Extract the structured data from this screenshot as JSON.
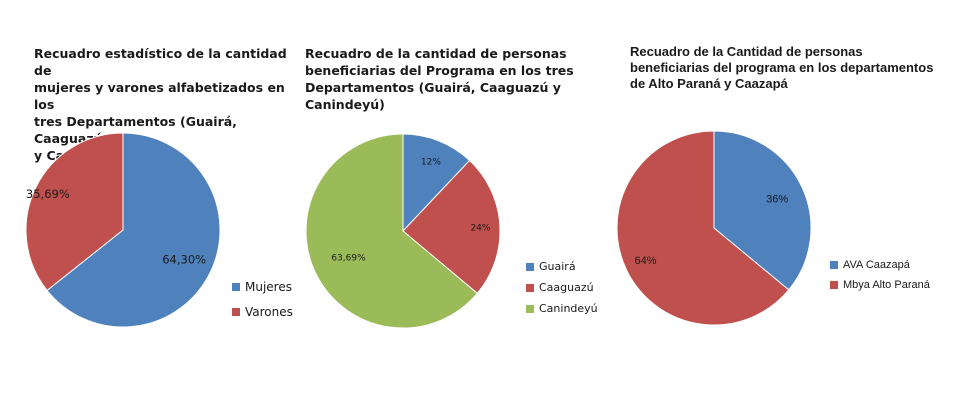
{
  "chart_data": [
    {
      "type": "pie",
      "title": "Recuadro estadístico de la cantidad de\nmujeres y varones alfabetizados en los\ntres Departamentos (Guairá, Caaguazú\ny Canindeyú)",
      "categories": [
        "Mujeres",
        "Varones"
      ],
      "values": [
        64.3,
        35.69
      ],
      "labels": [
        "64,30%",
        "35,69%"
      ],
      "colors": [
        "#4f81bd",
        "#c0504d"
      ],
      "legend_position": "right"
    },
    {
      "type": "pie",
      "title": "Recuadro de la cantidad de personas\nbeneficiarias del Programa en los tres\nDepartamentos (Guairá, Caaguazú y Canindeyú)",
      "categories": [
        "Guairá",
        "Caaguazú",
        "Canindeyú"
      ],
      "values": [
        12,
        24,
        63.69
      ],
      "labels": [
        "12%",
        "24%",
        "63,69%"
      ],
      "colors": [
        "#4f81bd",
        "#c0504d",
        "#9bbb59"
      ],
      "legend_position": "right"
    },
    {
      "type": "pie",
      "title": "Recuadro de la Cantidad de personas\nbeneficiarias del programa en los departamentos\nde Alto Paraná y Caazapá",
      "categories": [
        "AVA Caazapá",
        "Mbya Alto Paraná"
      ],
      "values": [
        36,
        64
      ],
      "labels": [
        "36%",
        "64%"
      ],
      "colors": [
        "#4f81bd",
        "#c0504d"
      ],
      "legend_position": "right"
    }
  ]
}
